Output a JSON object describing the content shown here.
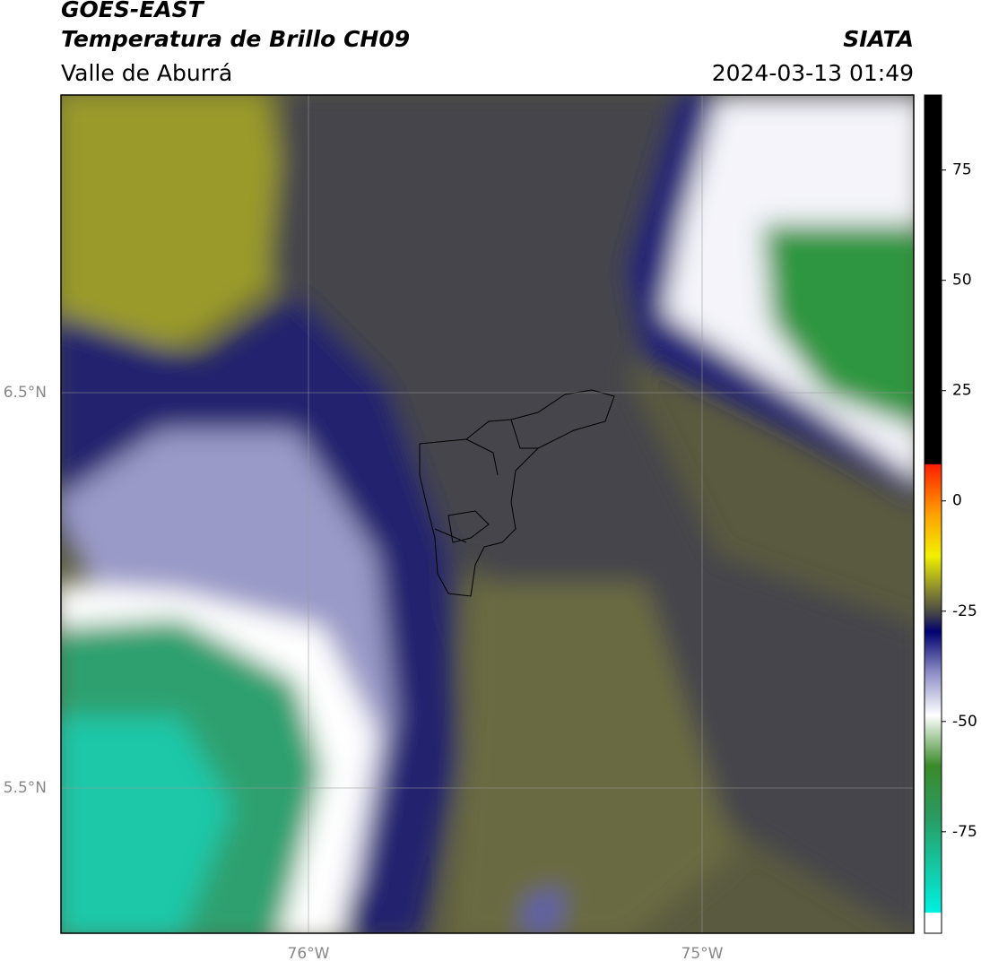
{
  "header": {
    "title": "GOES-EAST",
    "subtitle": "Temperatura de Brillo CH09",
    "region": "Valle de Aburrá",
    "brand": "SIATA",
    "timestamp": "2024-03-13 01:49"
  },
  "map": {
    "lat_labels": [
      "6.5°N",
      "5.5°N"
    ],
    "lon_labels": [
      "76°W",
      "75°W"
    ]
  },
  "colorbar": {
    "lim": [
      -98,
      92
    ],
    "ticks": [
      75,
      50,
      25,
      0,
      -25,
      -50,
      -75
    ]
  }
}
